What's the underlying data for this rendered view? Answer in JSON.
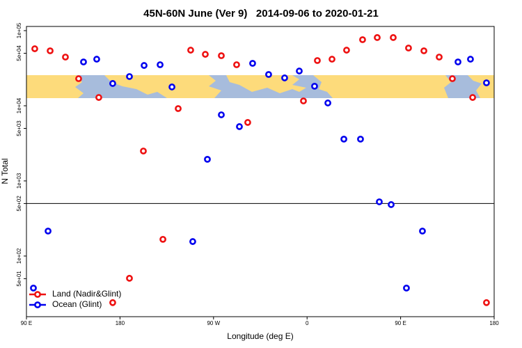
{
  "chart_data": {
    "type": "scatter",
    "title": "45N-60N June (Ver 9)   2014-09-06 to 2020-01-21",
    "x_label": "Longitude (deg E)",
    "y_label": "N Total",
    "xlim": [
      90,
      540
    ],
    "xticks": [
      {
        "value": 90,
        "label": "90 E"
      },
      180,
      {
        "value": 270,
        "label": "90 W"
      },
      {
        "value": 360,
        "label": "0"
      },
      {
        "value": 450,
        "label": "90 E"
      },
      {
        "value": 540,
        "label": "180"
      }
    ],
    "ylim": [
      15.6,
      113700
    ],
    "y_log": true,
    "yticks": [
      {
        "value": 100000,
        "label": "1e+05"
      },
      {
        "value": 50000,
        "label": "5e+04"
      },
      {
        "value": 10000,
        "label": "1e+04"
      },
      {
        "value": 5000,
        "label": "5e+03"
      },
      {
        "value": 1000,
        "label": "1e+03"
      },
      {
        "value": 500,
        "label": "5e+02"
      },
      {
        "value": 100,
        "label": "1e+02"
      },
      {
        "value": 50,
        "label": "5e+01"
      }
    ],
    "hline": 500,
    "legend": "bottomleft",
    "series": [
      {
        "name": "Land (Nadir&Glint)",
        "color": "#ee1111",
        "x": [
          98.0,
          112.8,
          127.5,
          140.2,
          159.6,
          202.5,
          221.3,
          236.0,
          248.0,
          262.1,
          277.5,
          292.2,
          302.9,
          356.5,
          369.9,
          384.0,
          398.0,
          413.4,
          427.5,
          442.9,
          457.6,
          472.4,
          487.1,
          499.8,
          519.3,
          189.1,
          173.0,
          532.6
        ],
        "values": [
          57400,
          53900,
          44500,
          22950,
          12900,
          2500,
          167,
          9180,
          55000,
          48400,
          46400,
          35200,
          6000,
          11600,
          40000,
          41700,
          55000,
          75800,
          80900,
          80900,
          58700,
          53900,
          44500,
          22950,
          12900,
          50.6,
          24.0,
          24.0
        ]
      },
      {
        "name": "Ocean (Glint)",
        "color": "#0000ee",
        "x": [
          96.7,
          110.8,
          144.9,
          157.6,
          173.0,
          189.1,
          203.2,
          218.6,
          230.0,
          250.0,
          264.1,
          277.5,
          294.9,
          307.6,
          323.0,
          338.4,
          352.5,
          367.2,
          380.0,
          395.4,
          411.4,
          429.5,
          440.9,
          455.6,
          471.0,
          505.2,
          517.2,
          532.6
        ],
        "values": [
          37.5,
          215,
          38300,
          41700,
          19800,
          24500,
          34400,
          35200,
          17800,
          156,
          1940,
          7580,
          5280,
          36700,
          26100,
          23500,
          29000,
          18200,
          10900,
          3600,
          3600,
          527,
          484,
          37.5,
          215,
          38300,
          41700,
          20200
        ]
      }
    ]
  }
}
